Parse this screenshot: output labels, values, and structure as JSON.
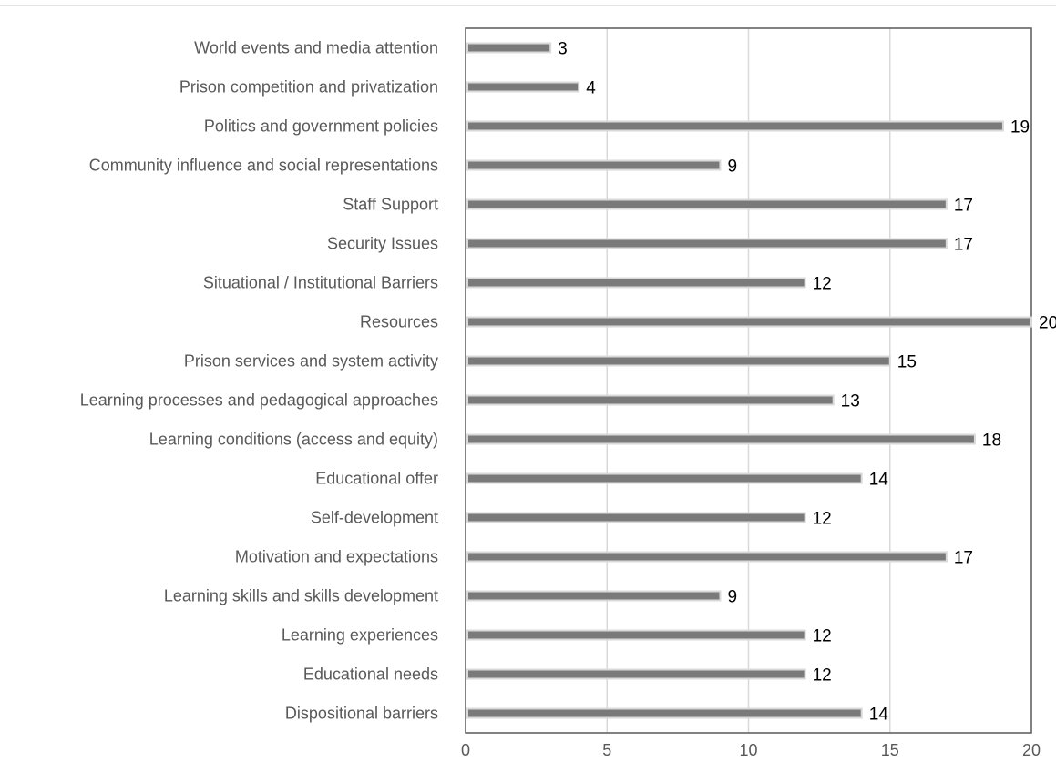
{
  "chart_data": {
    "type": "bar",
    "orientation": "horizontal",
    "title": "",
    "xlabel": "",
    "ylabel": "",
    "xlim": [
      0,
      20
    ],
    "xticks": [
      0,
      5,
      10,
      15,
      20
    ],
    "grid": true,
    "legend": "none",
    "colors": {
      "bar": "#7a7a7a",
      "bar_edge": "#d9d9d9",
      "grid": "#d9d9d9",
      "axis": "#595959",
      "text": "#595959",
      "label": "#000000"
    },
    "categories": [
      "World events and media attention",
      "Prison competition and privatization",
      "Politics and government policies",
      "Community influence and social representations",
      "Staff Support",
      "Security Issues",
      "Situational / Institutional Barriers",
      "Resources",
      "Prison services and system activity",
      "Learning processes and pedagogical approaches",
      "Learning conditions (access and equity)",
      "Educational offer",
      "Self-development",
      "Motivation and expectations",
      "Learning skills and skills development",
      "Learning experiences",
      "Educational needs",
      "Dispositional barriers"
    ],
    "values": [
      3,
      4,
      19,
      9,
      17,
      17,
      12,
      20,
      15,
      13,
      18,
      14,
      12,
      17,
      9,
      12,
      12,
      14
    ]
  }
}
